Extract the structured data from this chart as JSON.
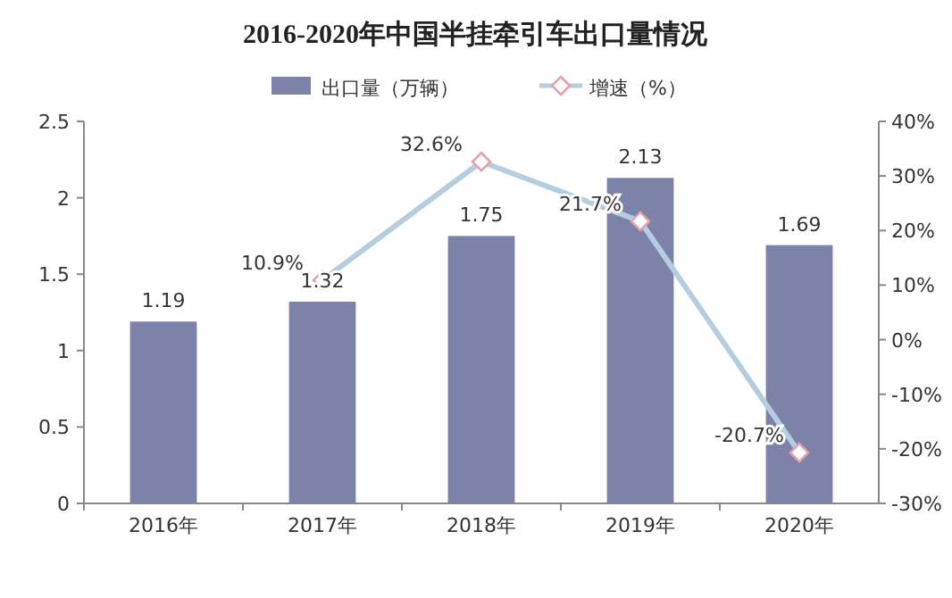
{
  "chart_data": {
    "type": "bar",
    "title": "2016-2020年中国半挂牵引车出口量情况",
    "categories": [
      "2016年",
      "2017年",
      "2018年",
      "2019年",
      "2020年"
    ],
    "series": [
      {
        "name": "出口量（万辆）",
        "color": "#7d82a8",
        "values": [
          1.19,
          1.32,
          1.75,
          2.13,
          1.69
        ]
      },
      {
        "name": "增速（%）",
        "type": "line",
        "axis": "y2",
        "color": "#b4cde0",
        "marker": "diamond",
        "values": [
          null,
          10.9,
          32.6,
          21.7,
          -20.7
        ],
        "value_labels": [
          null,
          "10.9%",
          "32.6%",
          "21.7%",
          "-20.7%"
        ]
      }
    ],
    "data_labels": true,
    "ylim": [
      0,
      2.5
    ],
    "yticks": [
      0,
      0.5,
      1,
      1.5,
      2,
      2.5
    ],
    "y2lim": [
      -30,
      40
    ],
    "y2ticks": [
      {
        "value": -30,
        "label": "-30%"
      },
      {
        "value": -20,
        "label": "-20%"
      },
      {
        "value": -10,
        "label": "-10%"
      },
      {
        "value": 0,
        "label": "0%"
      },
      {
        "value": 10,
        "label": "10%"
      },
      {
        "value": 20,
        "label": "20%"
      },
      {
        "value": 30,
        "label": "30%"
      },
      {
        "value": 40,
        "label": "40%"
      }
    ],
    "grid": false,
    "legend": "top"
  }
}
